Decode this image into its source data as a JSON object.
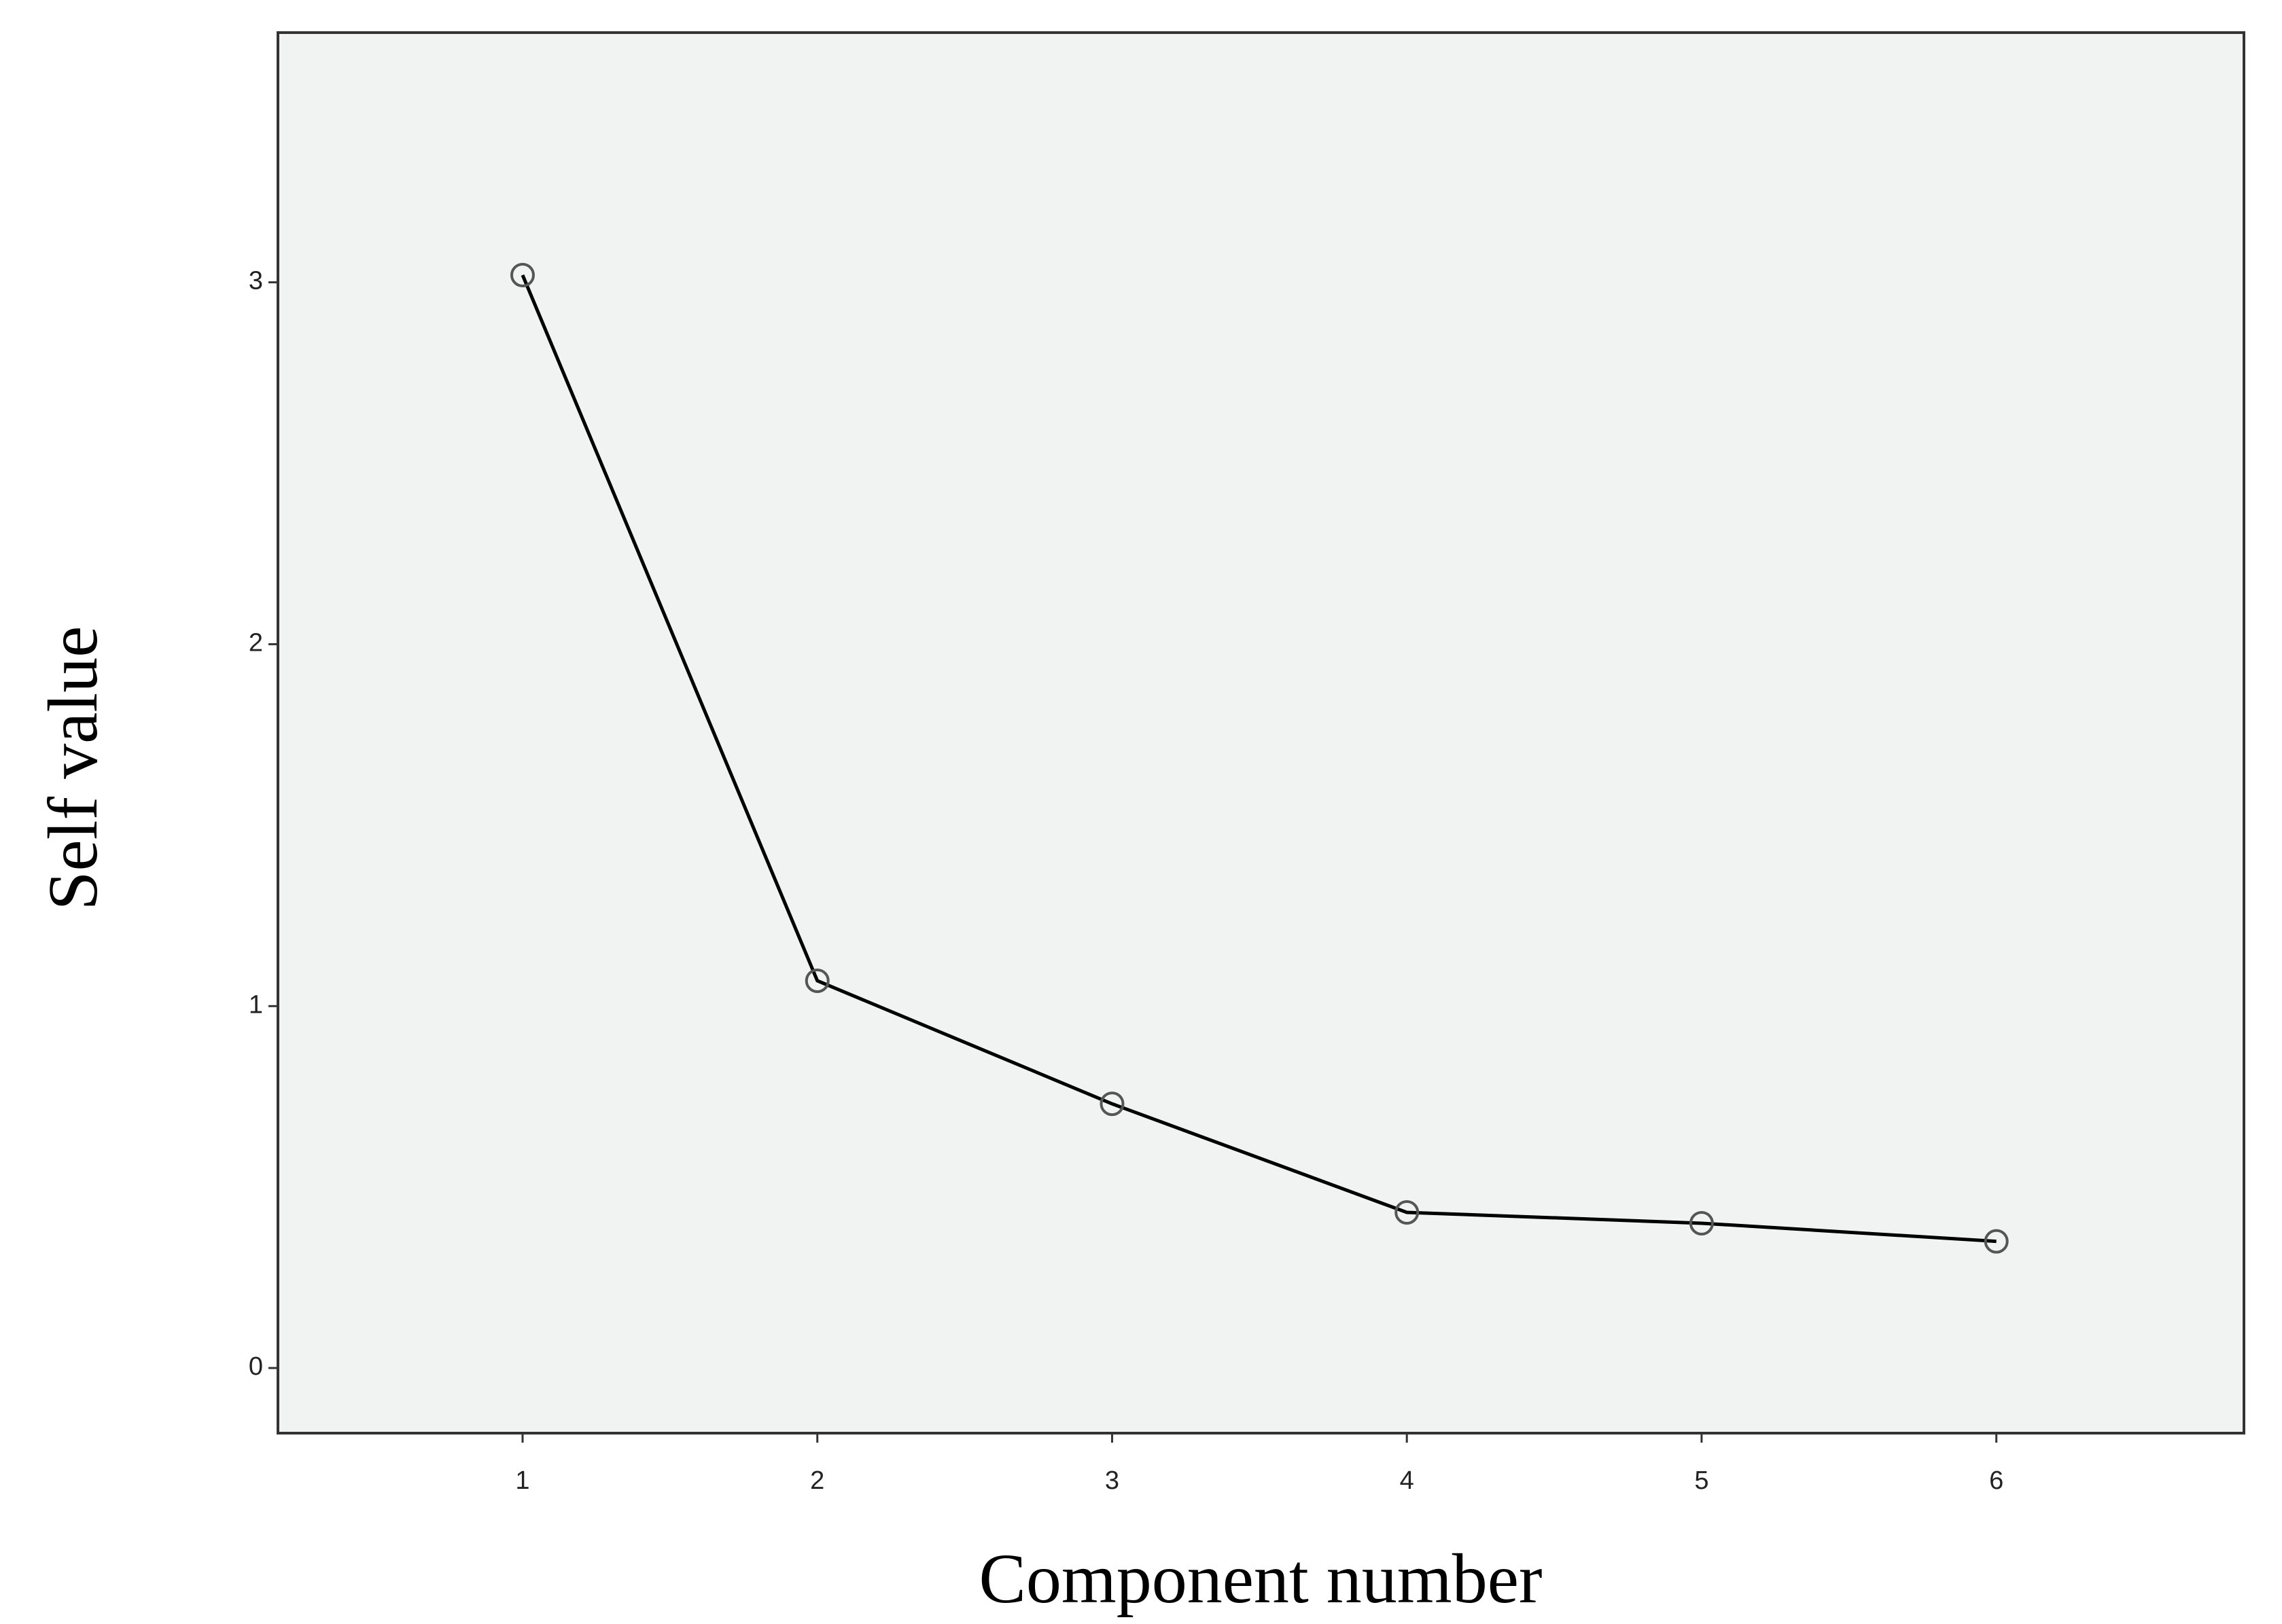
{
  "chart_data": {
    "type": "line",
    "x_label": "Component number",
    "y_label": "Self value",
    "x": [
      1,
      2,
      3,
      4,
      5,
      6
    ],
    "series": [
      {
        "color": "#000000",
        "values": [
          3.02,
          1.07,
          0.73,
          0.43,
          0.4,
          0.35
        ]
      }
    ],
    "xlim": [
      0.17,
      6.84
    ],
    "ylim": [
      -0.18,
      3.69
    ],
    "xticks": [
      1,
      2,
      3,
      4,
      5,
      6
    ],
    "yticks": [
      0,
      1,
      2,
      3
    ],
    "grid": false
  }
}
